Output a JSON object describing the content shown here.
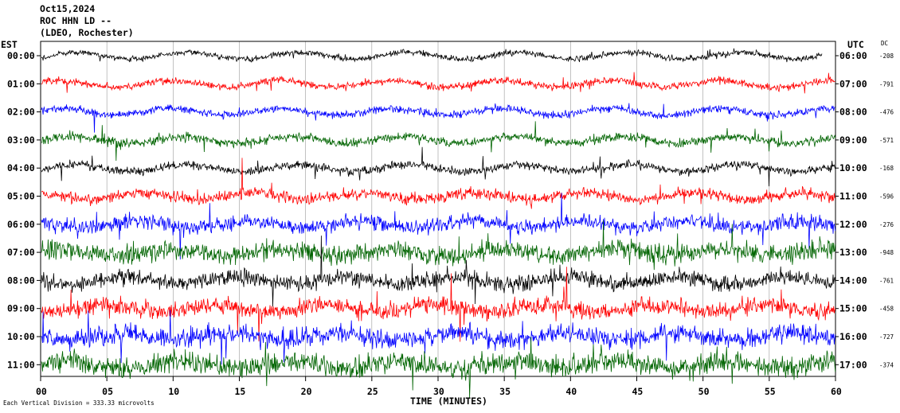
{
  "header": {
    "date": "Oct15,2024",
    "station": "ROC HHN LD --",
    "network": "(LDEO, Rochester)"
  },
  "labels": {
    "left_zone": "EST",
    "right_zone": "UTC",
    "dc": "DC",
    "xlabel": "TIME (MINUTES)",
    "scale_note": "Each Vertical Division = 333.33 microvolts"
  },
  "colors": {
    "black": "#000000",
    "red": "#ff0000",
    "blue": "#0000ff",
    "green": "#006400",
    "grid": "#999999"
  },
  "chart_data": {
    "type": "line",
    "title": "",
    "xlabel": "TIME (MINUTES)",
    "ylabel": "",
    "xlim": [
      0,
      60
    ],
    "x_ticks": [
      "00",
      "05",
      "10",
      "15",
      "20",
      "25",
      "30",
      "35",
      "40",
      "45",
      "50",
      "55",
      "60"
    ],
    "grid": true,
    "traces": [
      {
        "est": "00:00",
        "utc": "06:00",
        "dc": "-208",
        "color": "black",
        "amplitude": 0.3,
        "end_minute": 59
      },
      {
        "est": "01:00",
        "utc": "07:00",
        "dc": "-791",
        "color": "red",
        "amplitude": 0.36,
        "end_minute": 60
      },
      {
        "est": "02:00",
        "utc": "08:00",
        "dc": "-476",
        "color": "blue",
        "amplitude": 0.38,
        "end_minute": 60
      },
      {
        "est": "03:00",
        "utc": "09:00",
        "dc": "-571",
        "color": "green",
        "amplitude": 0.45,
        "end_minute": 60
      },
      {
        "est": "04:00",
        "utc": "10:00",
        "dc": "-168",
        "color": "black",
        "amplitude": 0.42,
        "end_minute": 60
      },
      {
        "est": "05:00",
        "utc": "11:00",
        "dc": "-596",
        "color": "red",
        "amplitude": 0.55,
        "end_minute": 60
      },
      {
        "est": "06:00",
        "utc": "12:00",
        "dc": "-276",
        "color": "blue",
        "amplitude": 0.75,
        "end_minute": 60
      },
      {
        "est": "07:00",
        "utc": "13:00",
        "dc": "-948",
        "color": "green",
        "amplitude": 0.95,
        "end_minute": 60
      },
      {
        "est": "08:00",
        "utc": "14:00",
        "dc": "-761",
        "color": "black",
        "amplitude": 0.8,
        "end_minute": 60
      },
      {
        "est": "09:00",
        "utc": "15:00",
        "dc": "-458",
        "color": "red",
        "amplitude": 0.85,
        "end_minute": 60
      },
      {
        "est": "10:00",
        "utc": "16:00",
        "dc": "-727",
        "color": "blue",
        "amplitude": 0.95,
        "end_minute": 60
      },
      {
        "est": "11:00",
        "utc": "17:00",
        "dc": "-374",
        "color": "green",
        "amplitude": 1.05,
        "end_minute": 60
      }
    ]
  }
}
